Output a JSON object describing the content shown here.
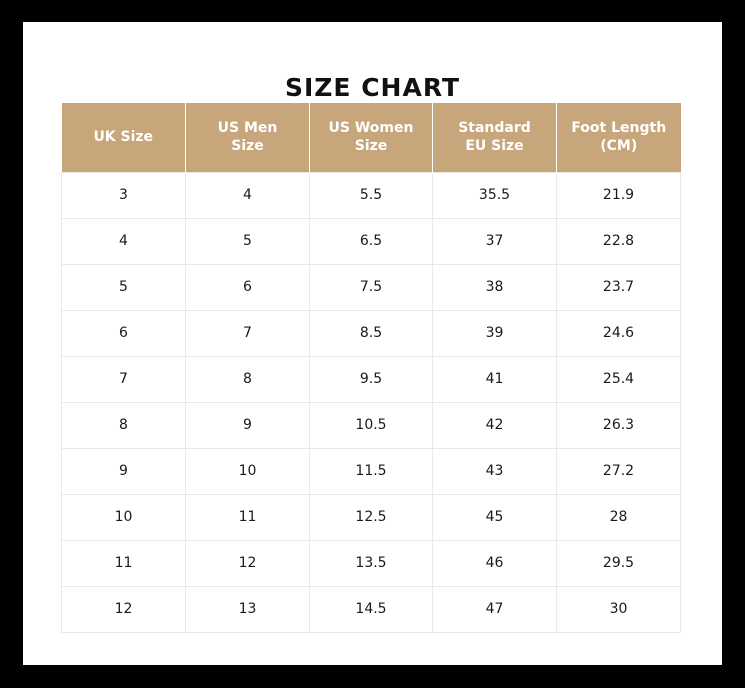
{
  "title": "SIZE CHART",
  "colors": {
    "header_bg": "#c8a67b",
    "header_text": "#ffffff",
    "frame": "#000000"
  },
  "columns": [
    [
      "UK Size"
    ],
    [
      "US Men",
      "Size"
    ],
    [
      "US Women",
      "Size"
    ],
    [
      "Standard",
      "EU Size"
    ],
    [
      "Foot Length",
      "(CM)"
    ]
  ],
  "rows": [
    [
      "3",
      "4",
      "5.5",
      "35.5",
      "21.9"
    ],
    [
      "4",
      "5",
      "6.5",
      "37",
      "22.8"
    ],
    [
      "5",
      "6",
      "7.5",
      "38",
      "23.7"
    ],
    [
      "6",
      "7",
      "8.5",
      "39",
      "24.6"
    ],
    [
      "7",
      "8",
      "9.5",
      "41",
      "25.4"
    ],
    [
      "8",
      "9",
      "10.5",
      "42",
      "26.3"
    ],
    [
      "9",
      "10",
      "11.5",
      "43",
      "27.2"
    ],
    [
      "10",
      "11",
      "12.5",
      "45",
      "28"
    ],
    [
      "11",
      "12",
      "13.5",
      "46",
      "29.5"
    ],
    [
      "12",
      "13",
      "14.5",
      "47",
      "30"
    ]
  ]
}
